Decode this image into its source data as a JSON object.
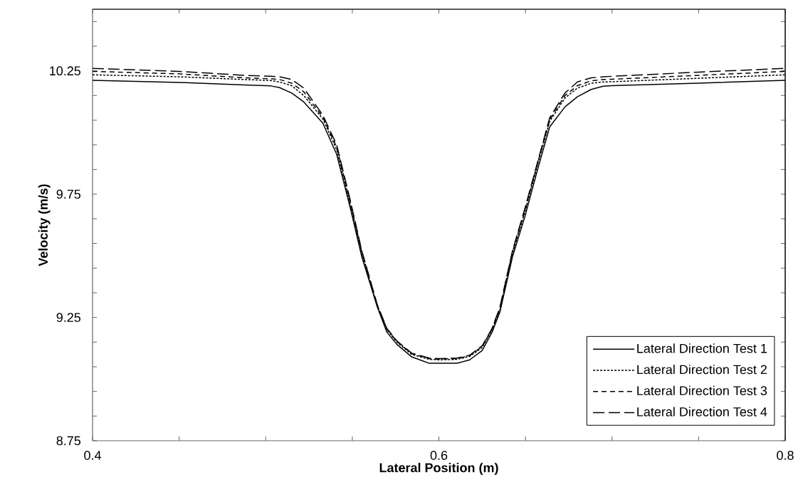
{
  "chart_data": {
    "type": "line",
    "xlabel": "Lateral Position (m)",
    "ylabel": "Velocity (m/s)",
    "x": [
      0.4,
      0.45,
      0.4876,
      0.503,
      0.508,
      0.515,
      0.522,
      0.533,
      0.541,
      0.549,
      0.5555,
      0.5645,
      0.57,
      0.5757,
      0.5843,
      0.5944,
      0.6,
      0.6105,
      0.6178,
      0.625,
      0.6307,
      0.6352,
      0.6425,
      0.6496,
      0.657,
      0.664,
      0.6728,
      0.68,
      0.688,
      0.695,
      0.7,
      0.75,
      0.8
    ],
    "series": [
      {
        "name": "Lateral Direction Test 1",
        "color": "#000000",
        "line_style": "solid",
        "values": [
          10.212,
          10.203,
          10.193,
          10.189,
          10.182,
          10.16,
          10.124,
          10.038,
          9.911,
          9.69,
          9.496,
          9.291,
          9.19,
          9.141,
          9.09,
          9.064,
          9.064,
          9.064,
          9.078,
          9.116,
          9.19,
          9.271,
          9.496,
          9.657,
          9.85,
          10.023,
          10.104,
          10.145,
          10.175,
          10.188,
          10.19,
          10.2,
          10.212
        ]
      },
      {
        "name": "Lateral Direction Test 2",
        "color": "#000000",
        "line_style": "dotted",
        "values": [
          10.234,
          10.226,
          10.215,
          10.211,
          10.205,
          10.19,
          10.15,
          10.055,
          9.93,
          9.705,
          9.51,
          9.295,
          9.2,
          9.15,
          9.1,
          9.08,
          9.078,
          9.08,
          9.092,
          9.128,
          9.2,
          9.28,
          9.51,
          9.675,
          9.87,
          10.045,
          10.14,
          10.18,
          10.2,
          10.205,
          10.206,
          10.22,
          10.234
        ]
      },
      {
        "name": "Lateral Direction Test 3",
        "color": "#000000",
        "line_style": "dashed",
        "values": [
          10.248,
          10.238,
          10.222,
          10.218,
          10.215,
          10.2,
          10.165,
          10.062,
          9.94,
          9.712,
          9.515,
          9.298,
          9.203,
          9.153,
          9.103,
          9.083,
          9.081,
          9.083,
          9.095,
          9.132,
          9.203,
          9.285,
          9.515,
          9.682,
          9.875,
          10.052,
          10.15,
          10.19,
          10.21,
          10.215,
          10.216,
          10.232,
          10.248
        ]
      },
      {
        "name": "Lateral Direction Test 4",
        "color": "#000000",
        "line_style": "long dashed",
        "values": [
          10.26,
          10.248,
          10.232,
          10.228,
          10.226,
          10.215,
          10.18,
          10.07,
          9.95,
          9.72,
          9.52,
          9.3,
          9.205,
          9.155,
          9.105,
          9.085,
          9.083,
          9.085,
          9.097,
          9.135,
          9.205,
          9.29,
          9.52,
          9.69,
          9.88,
          10.06,
          10.16,
          10.205,
          10.222,
          10.226,
          10.228,
          10.245,
          10.26
        ]
      }
    ],
    "xlim": [
      0.4,
      0.8
    ],
    "ylim": [
      8.75,
      10.5
    ],
    "xticks": [
      0.4,
      {
        "value": 0.45,
        "label": null
      },
      {
        "value": 0.5,
        "label": null
      },
      {
        "value": 0.55,
        "label": null
      },
      0.6,
      {
        "value": 0.65,
        "label": null
      },
      {
        "value": 0.7,
        "label": null
      },
      {
        "value": 0.75,
        "label": null
      },
      0.8
    ],
    "yticks": [
      8.75,
      {
        "value": 8.85,
        "label": null
      },
      {
        "value": 8.95,
        "label": null
      },
      {
        "value": 9.05,
        "label": null
      },
      {
        "value": 9.15,
        "label": null
      },
      9.25,
      {
        "value": 9.35,
        "label": null
      },
      {
        "value": 9.45,
        "label": null
      },
      {
        "value": 9.55,
        "label": null
      },
      {
        "value": 9.65,
        "label": null
      },
      9.75,
      {
        "value": 9.85,
        "label": null
      },
      {
        "value": 9.95,
        "label": null
      },
      {
        "value": 10.05,
        "label": null
      },
      {
        "value": 10.15,
        "label": null
      },
      10.25,
      {
        "value": 10.35,
        "label": null
      },
      {
        "value": 10.45,
        "label": null
      }
    ],
    "grid": false,
    "legend": "bottom right",
    "marker": "none"
  }
}
